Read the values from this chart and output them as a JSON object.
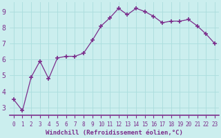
{
  "x": [
    0,
    1,
    2,
    3,
    4,
    5,
    6,
    7,
    8,
    9,
    10,
    11,
    12,
    13,
    14,
    15,
    16,
    17,
    18,
    19,
    20,
    21,
    22,
    23
  ],
  "y": [
    3.5,
    2.8,
    4.9,
    5.9,
    4.8,
    6.1,
    6.2,
    6.2,
    6.4,
    7.2,
    8.1,
    8.6,
    9.2,
    8.8,
    9.2,
    9.0,
    8.7,
    8.3,
    8.4,
    8.4,
    8.5,
    8.1,
    7.6,
    7.0
  ],
  "line_color": "#7B2D8B",
  "marker": "+",
  "marker_color": "#7B2D8B",
  "bg_color": "#cbeeee",
  "grid_color": "#aadddd",
  "xlabel": "Windchill (Refroidissement éolien,°C)",
  "ylabel_ticks": [
    3,
    4,
    5,
    6,
    7,
    8,
    9
  ],
  "xtick_labels": [
    "0",
    "1",
    "2",
    "3",
    "4",
    "5",
    "6",
    "7",
    "8",
    "9",
    "10",
    "11",
    "12",
    "13",
    "14",
    "15",
    "16",
    "17",
    "18",
    "19",
    "20",
    "21",
    "22",
    "23"
  ],
  "xlim": [
    -0.5,
    23.5
  ],
  "ylim": [
    2.5,
    9.6
  ],
  "axis_color": "#7B2D8B",
  "tick_color": "#7B2D8B",
  "label_color": "#7B2D8B",
  "spine_bottom_color": "#7B2D8B",
  "xtick_fontsize": 5.5,
  "ytick_fontsize": 7.0,
  "xlabel_fontsize": 6.5
}
